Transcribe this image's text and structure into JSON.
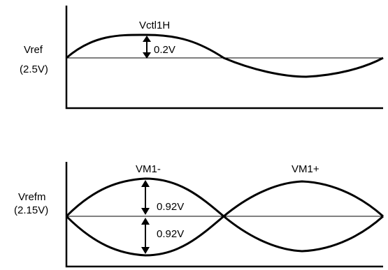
{
  "top_panel": {
    "ref_label": "Vref",
    "ref_value": "(2.5V)",
    "peak_label": "Vctl1H",
    "amplitude_label": "0.2V"
  },
  "bottom_panel": {
    "ref_label": "Vrefm",
    "ref_value": "(2.15V)",
    "left_lobe_label": "VM1-",
    "right_lobe_label": "VM1+",
    "upper_amplitude_label": "0.92V",
    "lower_amplitude_label": "0.92V"
  }
}
